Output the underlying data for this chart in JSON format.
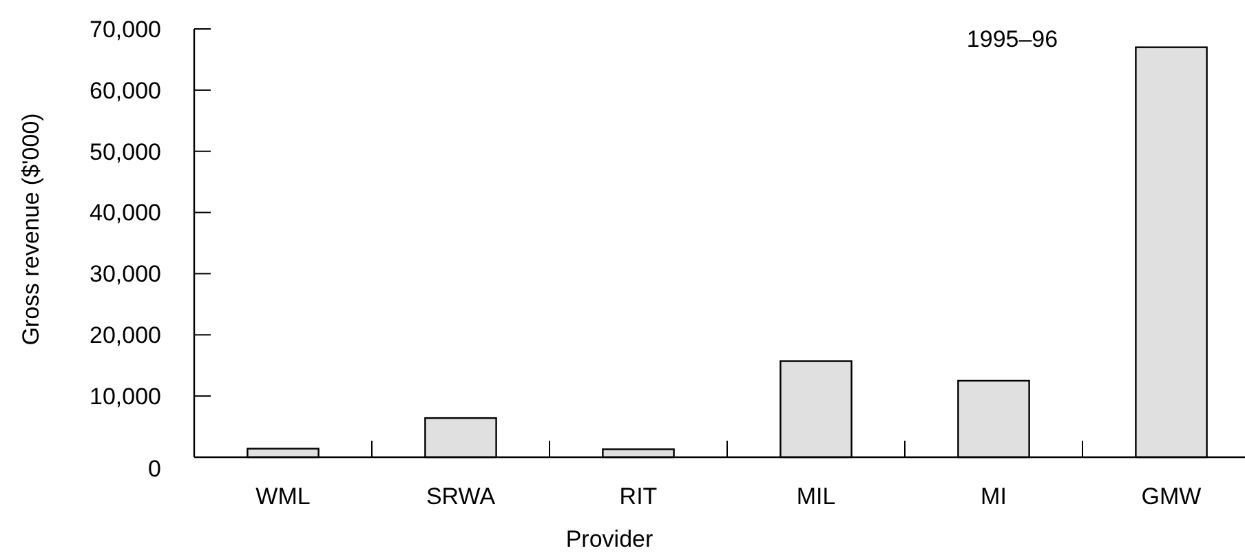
{
  "chart_data": {
    "type": "bar",
    "title": "1995–96",
    "xlabel": "Provider",
    "ylabel": "Gross revenue ($'000)",
    "categories": [
      "WML",
      "SRWA",
      "RIT",
      "MIL",
      "MI",
      "GMW"
    ],
    "values": [
      1400,
      6400,
      1300,
      15700,
      12500,
      67000
    ],
    "color": "#e0e0e0",
    "ylim": [
      0,
      70000
    ],
    "yticks": [
      {
        "value": 0,
        "label": "0"
      },
      {
        "value": 10000,
        "label": "10,000"
      },
      {
        "value": 20000,
        "label": "20,000"
      },
      {
        "value": 30000,
        "label": "30,000"
      },
      {
        "value": 40000,
        "label": "40,000"
      },
      {
        "value": 50000,
        "label": "50,000"
      },
      {
        "value": 60000,
        "label": "60,000"
      },
      {
        "value": 70000,
        "label": "70,000"
      }
    ],
    "grid": false
  }
}
